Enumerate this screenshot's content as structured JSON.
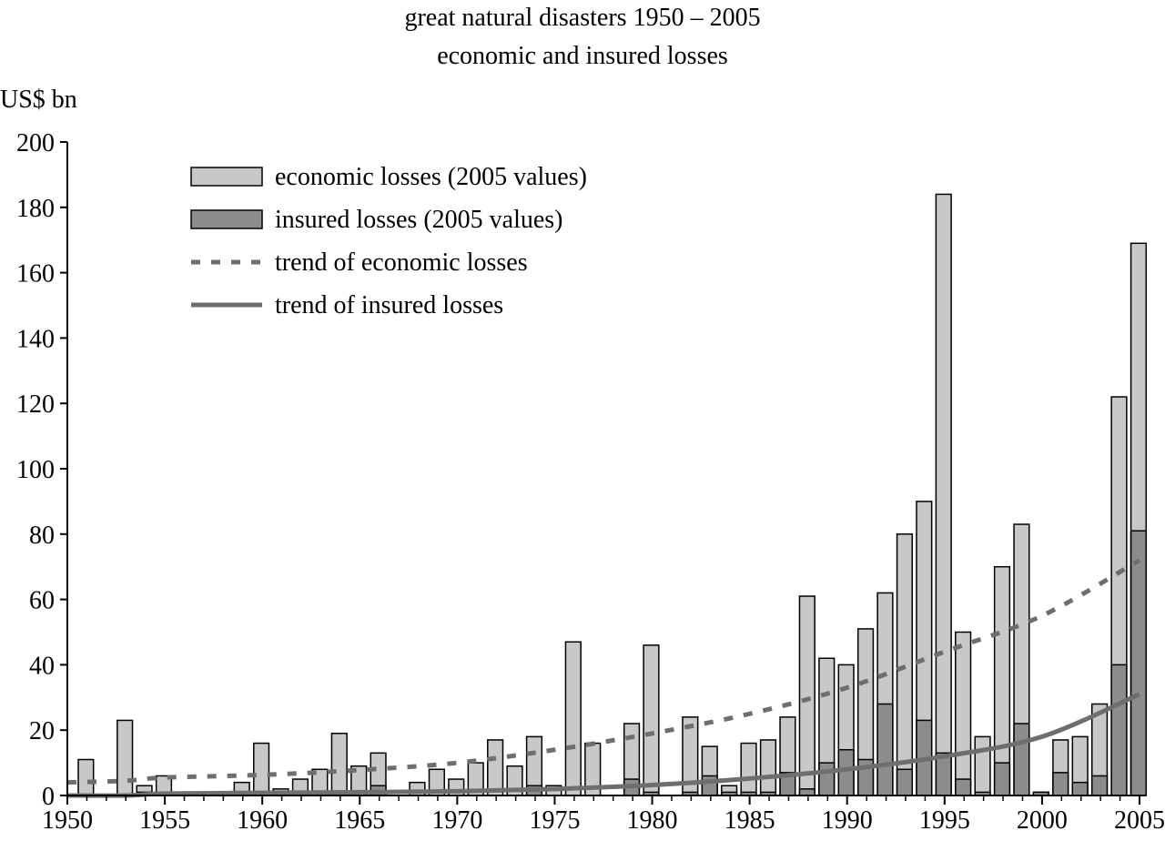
{
  "chart_data": {
    "type": "bar",
    "title": "great natural disasters 1950 – 2005",
    "subtitle": "economic and insured losses",
    "ylabel": "US$ bn",
    "xlabel": "",
    "ylim": [
      0,
      200
    ],
    "xlim": [
      1950,
      2005
    ],
    "y_ticks": [
      0,
      20,
      40,
      60,
      80,
      100,
      120,
      140,
      160,
      180,
      200
    ],
    "x_ticks": [
      1950,
      1955,
      1960,
      1965,
      1970,
      1975,
      1980,
      1985,
      1990,
      1995,
      2000,
      2005
    ],
    "grid": false,
    "legend_position": "top-left",
    "years": [
      1950,
      1951,
      1952,
      1953,
      1954,
      1955,
      1956,
      1957,
      1958,
      1959,
      1960,
      1961,
      1962,
      1963,
      1964,
      1965,
      1966,
      1967,
      1968,
      1969,
      1970,
      1971,
      1972,
      1973,
      1974,
      1975,
      1976,
      1977,
      1978,
      1979,
      1980,
      1981,
      1982,
      1983,
      1984,
      1985,
      1986,
      1987,
      1988,
      1989,
      1990,
      1991,
      1992,
      1993,
      1994,
      1995,
      1996,
      1997,
      1998,
      1999,
      2000,
      2001,
      2002,
      2003,
      2004,
      2005
    ],
    "series": [
      {
        "name": "economic losses (2005 values)",
        "kind": "bar",
        "color": "#c8c8c8",
        "values": [
          0,
          11,
          0,
          23,
          3,
          6,
          0,
          0,
          0,
          4,
          16,
          2,
          5,
          8,
          19,
          9,
          13,
          0,
          4,
          8,
          5,
          10,
          17,
          9,
          18,
          3,
          47,
          16,
          0,
          22,
          46,
          0,
          24,
          15,
          3,
          16,
          17,
          24,
          61,
          42,
          40,
          51,
          62,
          80,
          90,
          184,
          50,
          18,
          70,
          83,
          1,
          17,
          18,
          28,
          122,
          169
        ]
      },
      {
        "name": "insured losses (2005 values)",
        "kind": "bar",
        "color": "#8c8c8c",
        "values": [
          0,
          0,
          0,
          0,
          1,
          0,
          0,
          0,
          0,
          0,
          0,
          0,
          0,
          0,
          0,
          0,
          3,
          0,
          0,
          0,
          0,
          0,
          0,
          0,
          3,
          0,
          0,
          0,
          0,
          5,
          1,
          0,
          1,
          6,
          1,
          1,
          1,
          7,
          2,
          10,
          14,
          11,
          28,
          8,
          23,
          13,
          5,
          1,
          10,
          22,
          1,
          7,
          4,
          6,
          40,
          81
        ]
      },
      {
        "name": "trend of economic losses",
        "kind": "line",
        "style": "dashed",
        "color": "#6e6e6e",
        "x": [
          1950,
          1953,
          1955,
          1960,
          1965,
          1970,
          1975,
          1980,
          1985,
          1990,
          1995,
          2000,
          2005
        ],
        "values": [
          4,
          4.5,
          5.5,
          6.3,
          7.8,
          10,
          14,
          19,
          25,
          33,
          44,
          55,
          72
        ]
      },
      {
        "name": "trend of insured losses",
        "kind": "line",
        "style": "solid",
        "color": "#6e6e6e",
        "x": [
          1950,
          1953,
          1955,
          1960,
          1965,
          1970,
          1975,
          1980,
          1985,
          1990,
          1995,
          2000,
          2005
        ],
        "values": [
          0,
          0,
          0.6,
          0.8,
          1,
          1.3,
          2,
          3.2,
          5.2,
          8,
          12,
          18,
          31
        ]
      }
    ]
  }
}
